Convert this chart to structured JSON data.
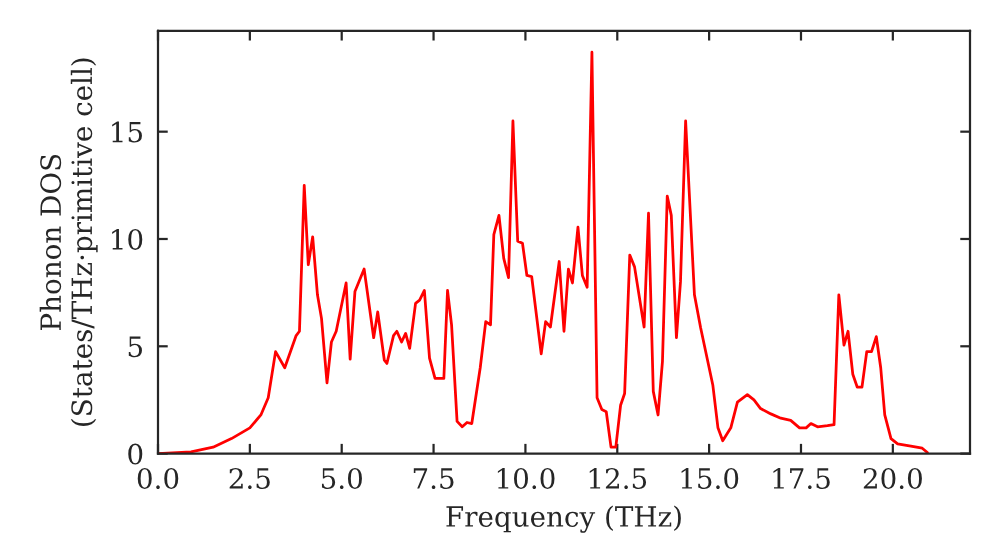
{
  "chart_data": {
    "type": "line",
    "xlabel": "Frequency (THz)",
    "ylabel": "Phonon DOS\n(States/THz·primitive cell)",
    "xlim": [
      0,
      22.1
    ],
    "ylim": [
      0,
      19.7
    ],
    "xticks": [
      {
        "value": 0,
        "label": "0.0"
      },
      {
        "value": 2.5,
        "label": "2.5"
      },
      {
        "value": 5,
        "label": "5.0"
      },
      {
        "value": 7.5,
        "label": "7.5"
      },
      {
        "value": 10,
        "label": "10.0"
      },
      {
        "value": 12.5,
        "label": "12.5"
      },
      {
        "value": 15,
        "label": "15.0"
      },
      {
        "value": 17.5,
        "label": "17.5"
      },
      {
        "value": 20,
        "label": "20.0"
      }
    ],
    "yticks": [
      0,
      5,
      10,
      15
    ],
    "grid": false,
    "marker": "none",
    "line_style": "solid",
    "series": [
      {
        "color": "#ff0000",
        "x": [
          0,
          0.9,
          1.5,
          2.0,
          2.5,
          2.8,
          3.0,
          3.2,
          3.45,
          3.76,
          3.85,
          3.98,
          4.09,
          4.21,
          4.34,
          4.45,
          4.6,
          4.72,
          4.85,
          5.12,
          5.23,
          5.36,
          5.61,
          5.87,
          5.98,
          6.16,
          6.23,
          6.41,
          6.5,
          6.63,
          6.74,
          6.85,
          7.01,
          7.12,
          7.25,
          7.39,
          7.54,
          7.78,
          7.88,
          7.99,
          8.14,
          8.28,
          8.41,
          8.54,
          8.77,
          8.92,
          9.05,
          9.14,
          9.28,
          9.41,
          9.54,
          9.66,
          9.79,
          9.92,
          10.04,
          10.17,
          10.43,
          10.55,
          10.68,
          10.92,
          11.05,
          11.17,
          11.28,
          11.43,
          11.55,
          11.68,
          11.81,
          11.95,
          12.08,
          12.2,
          12.33,
          12.46,
          12.59,
          12.7,
          12.84,
          12.97,
          13.23,
          13.35,
          13.48,
          13.61,
          13.73,
          13.86,
          13.97,
          14.11,
          14.22,
          14.36,
          14.6,
          14.77,
          15.1,
          15.24,
          15.37,
          15.59,
          15.77,
          16.04,
          16.22,
          16.4,
          16.68,
          16.95,
          17.22,
          17.46,
          17.64,
          17.77,
          17.95,
          18.22,
          18.4,
          18.53,
          18.67,
          18.78,
          18.91,
          19.03,
          19.16,
          19.29,
          19.42,
          19.55,
          19.67,
          19.78,
          19.95,
          20.13,
          20.49,
          20.8,
          20.94
        ],
        "values": [
          0,
          0.08,
          0.3,
          0.7,
          1.2,
          1.8,
          2.6,
          4.75,
          4.0,
          5.5,
          5.7,
          12.5,
          8.8,
          10.1,
          7.4,
          6.3,
          3.3,
          5.2,
          5.7,
          7.95,
          4.4,
          7.55,
          8.6,
          5.4,
          6.6,
          4.35,
          4.2,
          5.5,
          5.7,
          5.2,
          5.6,
          4.9,
          7.0,
          7.15,
          7.6,
          4.45,
          3.5,
          3.5,
          7.6,
          6.0,
          1.5,
          1.25,
          1.45,
          1.4,
          4.0,
          6.15,
          6.0,
          10.2,
          11.1,
          9.1,
          8.2,
          15.5,
          9.9,
          9.8,
          8.3,
          8.25,
          4.65,
          6.15,
          5.9,
          8.95,
          5.7,
          8.6,
          7.95,
          10.55,
          8.3,
          7.75,
          18.7,
          2.6,
          2.05,
          1.95,
          0.3,
          0.3,
          2.25,
          2.8,
          9.25,
          8.7,
          5.9,
          11.2,
          2.9,
          1.8,
          4.3,
          12.0,
          11.1,
          5.4,
          8.0,
          15.5,
          7.4,
          5.85,
          3.2,
          1.2,
          0.6,
          1.2,
          2.4,
          2.75,
          2.5,
          2.1,
          1.85,
          1.65,
          1.55,
          1.2,
          1.2,
          1.4,
          1.25,
          1.3,
          1.35,
          7.4,
          5.05,
          5.7,
          3.7,
          3.1,
          3.1,
          4.75,
          4.75,
          5.45,
          4.0,
          1.8,
          0.7,
          0.45,
          0.35,
          0.25,
          0.05
        ]
      }
    ]
  }
}
